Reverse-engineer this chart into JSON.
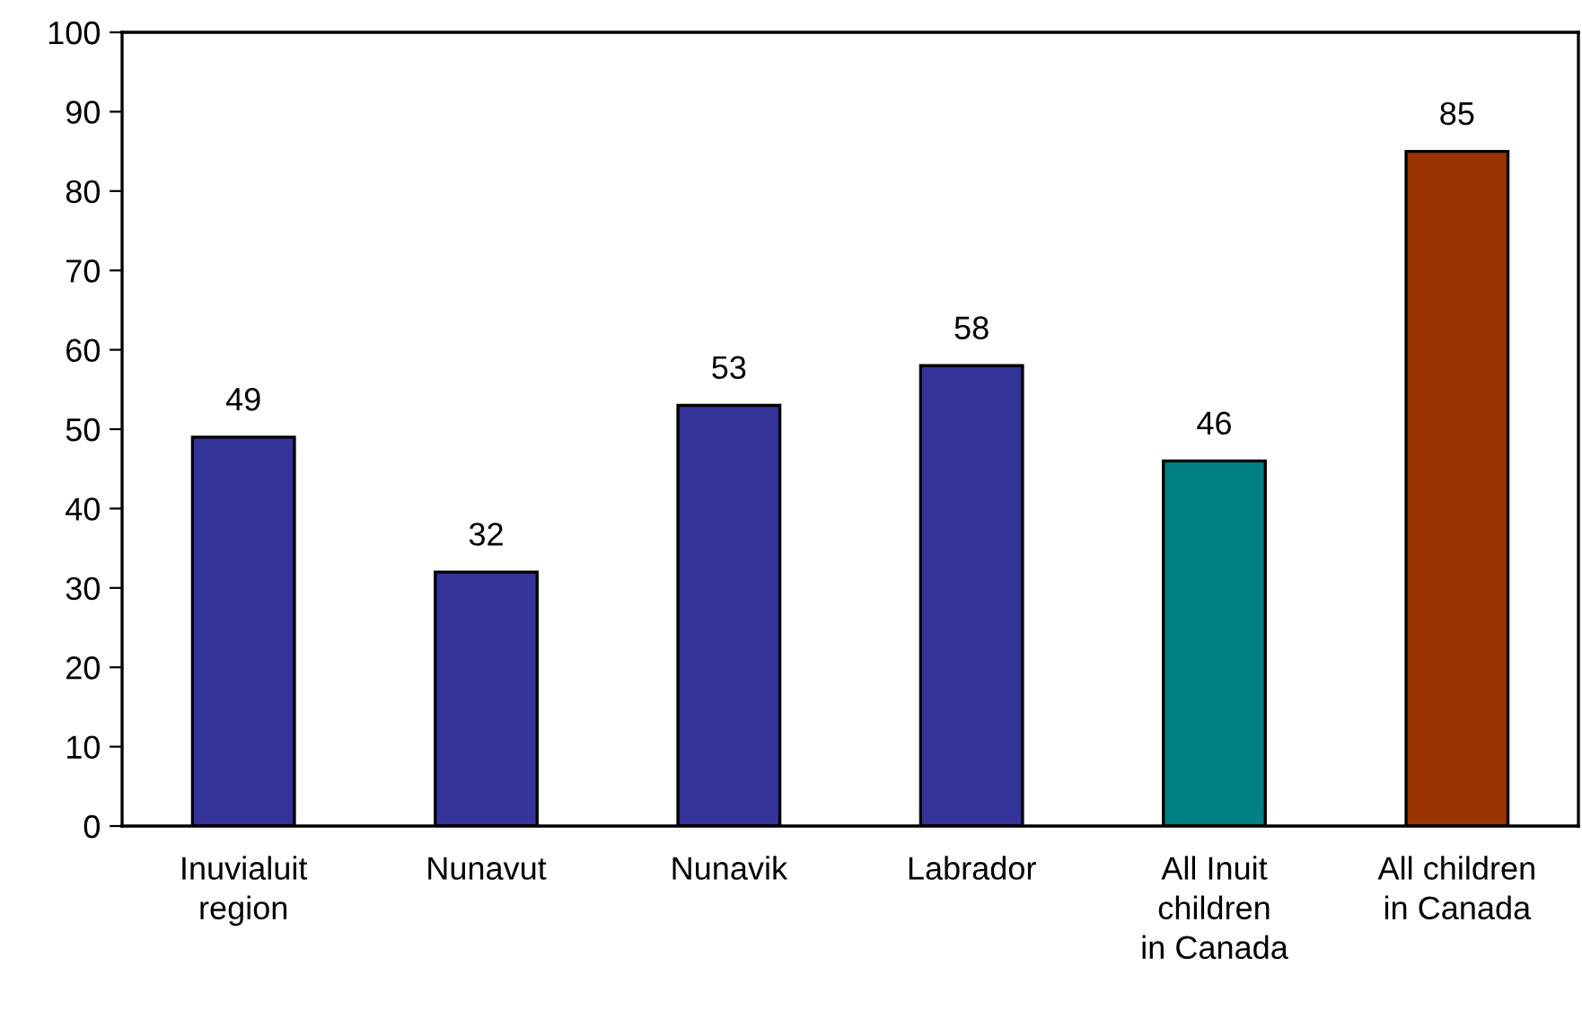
{
  "chart_data": {
    "type": "bar",
    "categories": [
      "Inuvialuit\nregion",
      "Nunavut",
      "Nunavik",
      "Labrador",
      "All Inuit\nchildren\nin Canada",
      "All children\nin Canada"
    ],
    "values": [
      49,
      32,
      53,
      58,
      46,
      85
    ],
    "colors": [
      "#333399",
      "#333399",
      "#333399",
      "#333399",
      "#008080",
      "#993300"
    ],
    "ylim": [
      0,
      100
    ],
    "yticks": [
      0,
      10,
      20,
      30,
      40,
      50,
      60,
      70,
      80,
      90,
      100
    ],
    "data_labels": true,
    "grid": false,
    "legend": false
  }
}
